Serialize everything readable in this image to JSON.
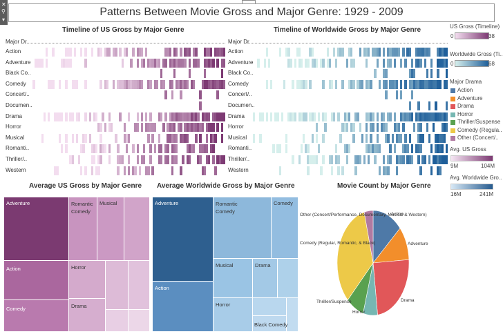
{
  "title": "Patterns Between Movie Gross and Major Genre: 1929 - 2009",
  "timeline_us": {
    "title": "Timeline of US Gross by Major Genre",
    "col_header": "Major Dr..",
    "rows": [
      "Action",
      "Adventure",
      "Black Co..",
      "Comedy",
      "Concert/..",
      "Documen..",
      "Drama",
      "Horror",
      "Musical",
      "Romanti..",
      "Thriller/..",
      "Western"
    ]
  },
  "timeline_ww": {
    "title": "Timeline of Worldwide Gross by Major Genre",
    "col_header": "Major Dr..",
    "rows": [
      "Action",
      "Adventure",
      "Black Co..",
      "Comedy",
      "Concert/..",
      "Documen..",
      "Drama",
      "Horror",
      "Musical",
      "Romanti..",
      "Thriller/..",
      "Western"
    ]
  },
  "legend": {
    "us_gross": {
      "title": "US Gross (Timeline)",
      "min": "0",
      "max": "38",
      "color_low": "#f3ddef",
      "color_high": "#7d3a73"
    },
    "ww_gross": {
      "title": "Worldwide Gross (Ti..",
      "min": "0",
      "max": "68",
      "color_low": "#d6efec",
      "color_high": "#1f5f9a"
    },
    "major_drama": {
      "title": "Major Drama",
      "items": [
        {
          "label": "Action",
          "color": "#4e79a7"
        },
        {
          "label": "Adventure",
          "color": "#f28e2b"
        },
        {
          "label": "Drama",
          "color": "#e15759"
        },
        {
          "label": "Horror",
          "color": "#76b7b2"
        },
        {
          "label": "Thriller/Suspense",
          "color": "#59a14f"
        },
        {
          "label": "Comedy (Regula..",
          "color": "#edc948"
        },
        {
          "label": "Other (Concert/..",
          "color": "#b07aa1"
        }
      ]
    },
    "avg_us": {
      "title": "Avg. US Gross",
      "min": "9M",
      "max": "104M",
      "color_low": "#f5e6f3",
      "color_high": "#7d3a73"
    },
    "avg_ww": {
      "title": "Avg. Worldwide Gro..",
      "min": "16M",
      "max": "241M",
      "color_low": "#d7e8f5",
      "color_high": "#275b8e"
    }
  },
  "treemap_us": {
    "title": "Average US Gross by Major Genre",
    "labels": {
      "adventure": "Adventure",
      "romantic_comedy": "Romantic Comedy",
      "musical": "Musical",
      "action": "Action",
      "horror": "Horror",
      "comedy": "Comedy",
      "drama": "Drama"
    }
  },
  "treemap_ww": {
    "title": "Average Worldwide Gross by Major Genre",
    "labels": {
      "adventure": "Adventure",
      "romantic_comedy": "Romantic Comedy",
      "comedy": "Comedy",
      "musical": "Musical",
      "drama": "Drama",
      "action": "Action",
      "horror": "Horror",
      "black_comedy": "Black Comedy"
    }
  },
  "chart_data": [
    {
      "type": "heatmap",
      "title": "Timeline of US Gross by Major Genre",
      "rows": [
        "Action",
        "Adventure",
        "Black Co..",
        "Comedy",
        "Concert/..",
        "Documen..",
        "Drama",
        "Horror",
        "Musical",
        "Romanti..",
        "Thriller/..",
        "Western"
      ],
      "color_range": [
        0,
        38
      ]
    },
    {
      "type": "heatmap",
      "title": "Timeline of Worldwide Gross by Major Genre",
      "rows": [
        "Action",
        "Adventure",
        "Black Co..",
        "Comedy",
        "Concert/..",
        "Documen..",
        "Drama",
        "Horror",
        "Musical",
        "Romanti..",
        "Thriller/..",
        "Western"
      ],
      "color_range": [
        0,
        68
      ]
    },
    {
      "type": "pie",
      "title": "Movie Count by Major Genre",
      "labels": [
        "Action",
        "Adventure",
        "Drama",
        "Horror",
        "Thriller/Suspense",
        "Comedy (Regular, Romantic, & Black)",
        "Other (Concert/Performance, Documentary, Musical & Western)"
      ],
      "values": [
        13.5,
        10.5,
        24,
        6.5,
        8,
        33.5,
        4
      ],
      "colors": [
        "#4e79a7",
        "#f28e2b",
        "#e15759",
        "#76b7b2",
        "#59a14f",
        "#edc948",
        "#b07aa1"
      ]
    }
  ],
  "pie_title": "Movie Count by Major Genre"
}
